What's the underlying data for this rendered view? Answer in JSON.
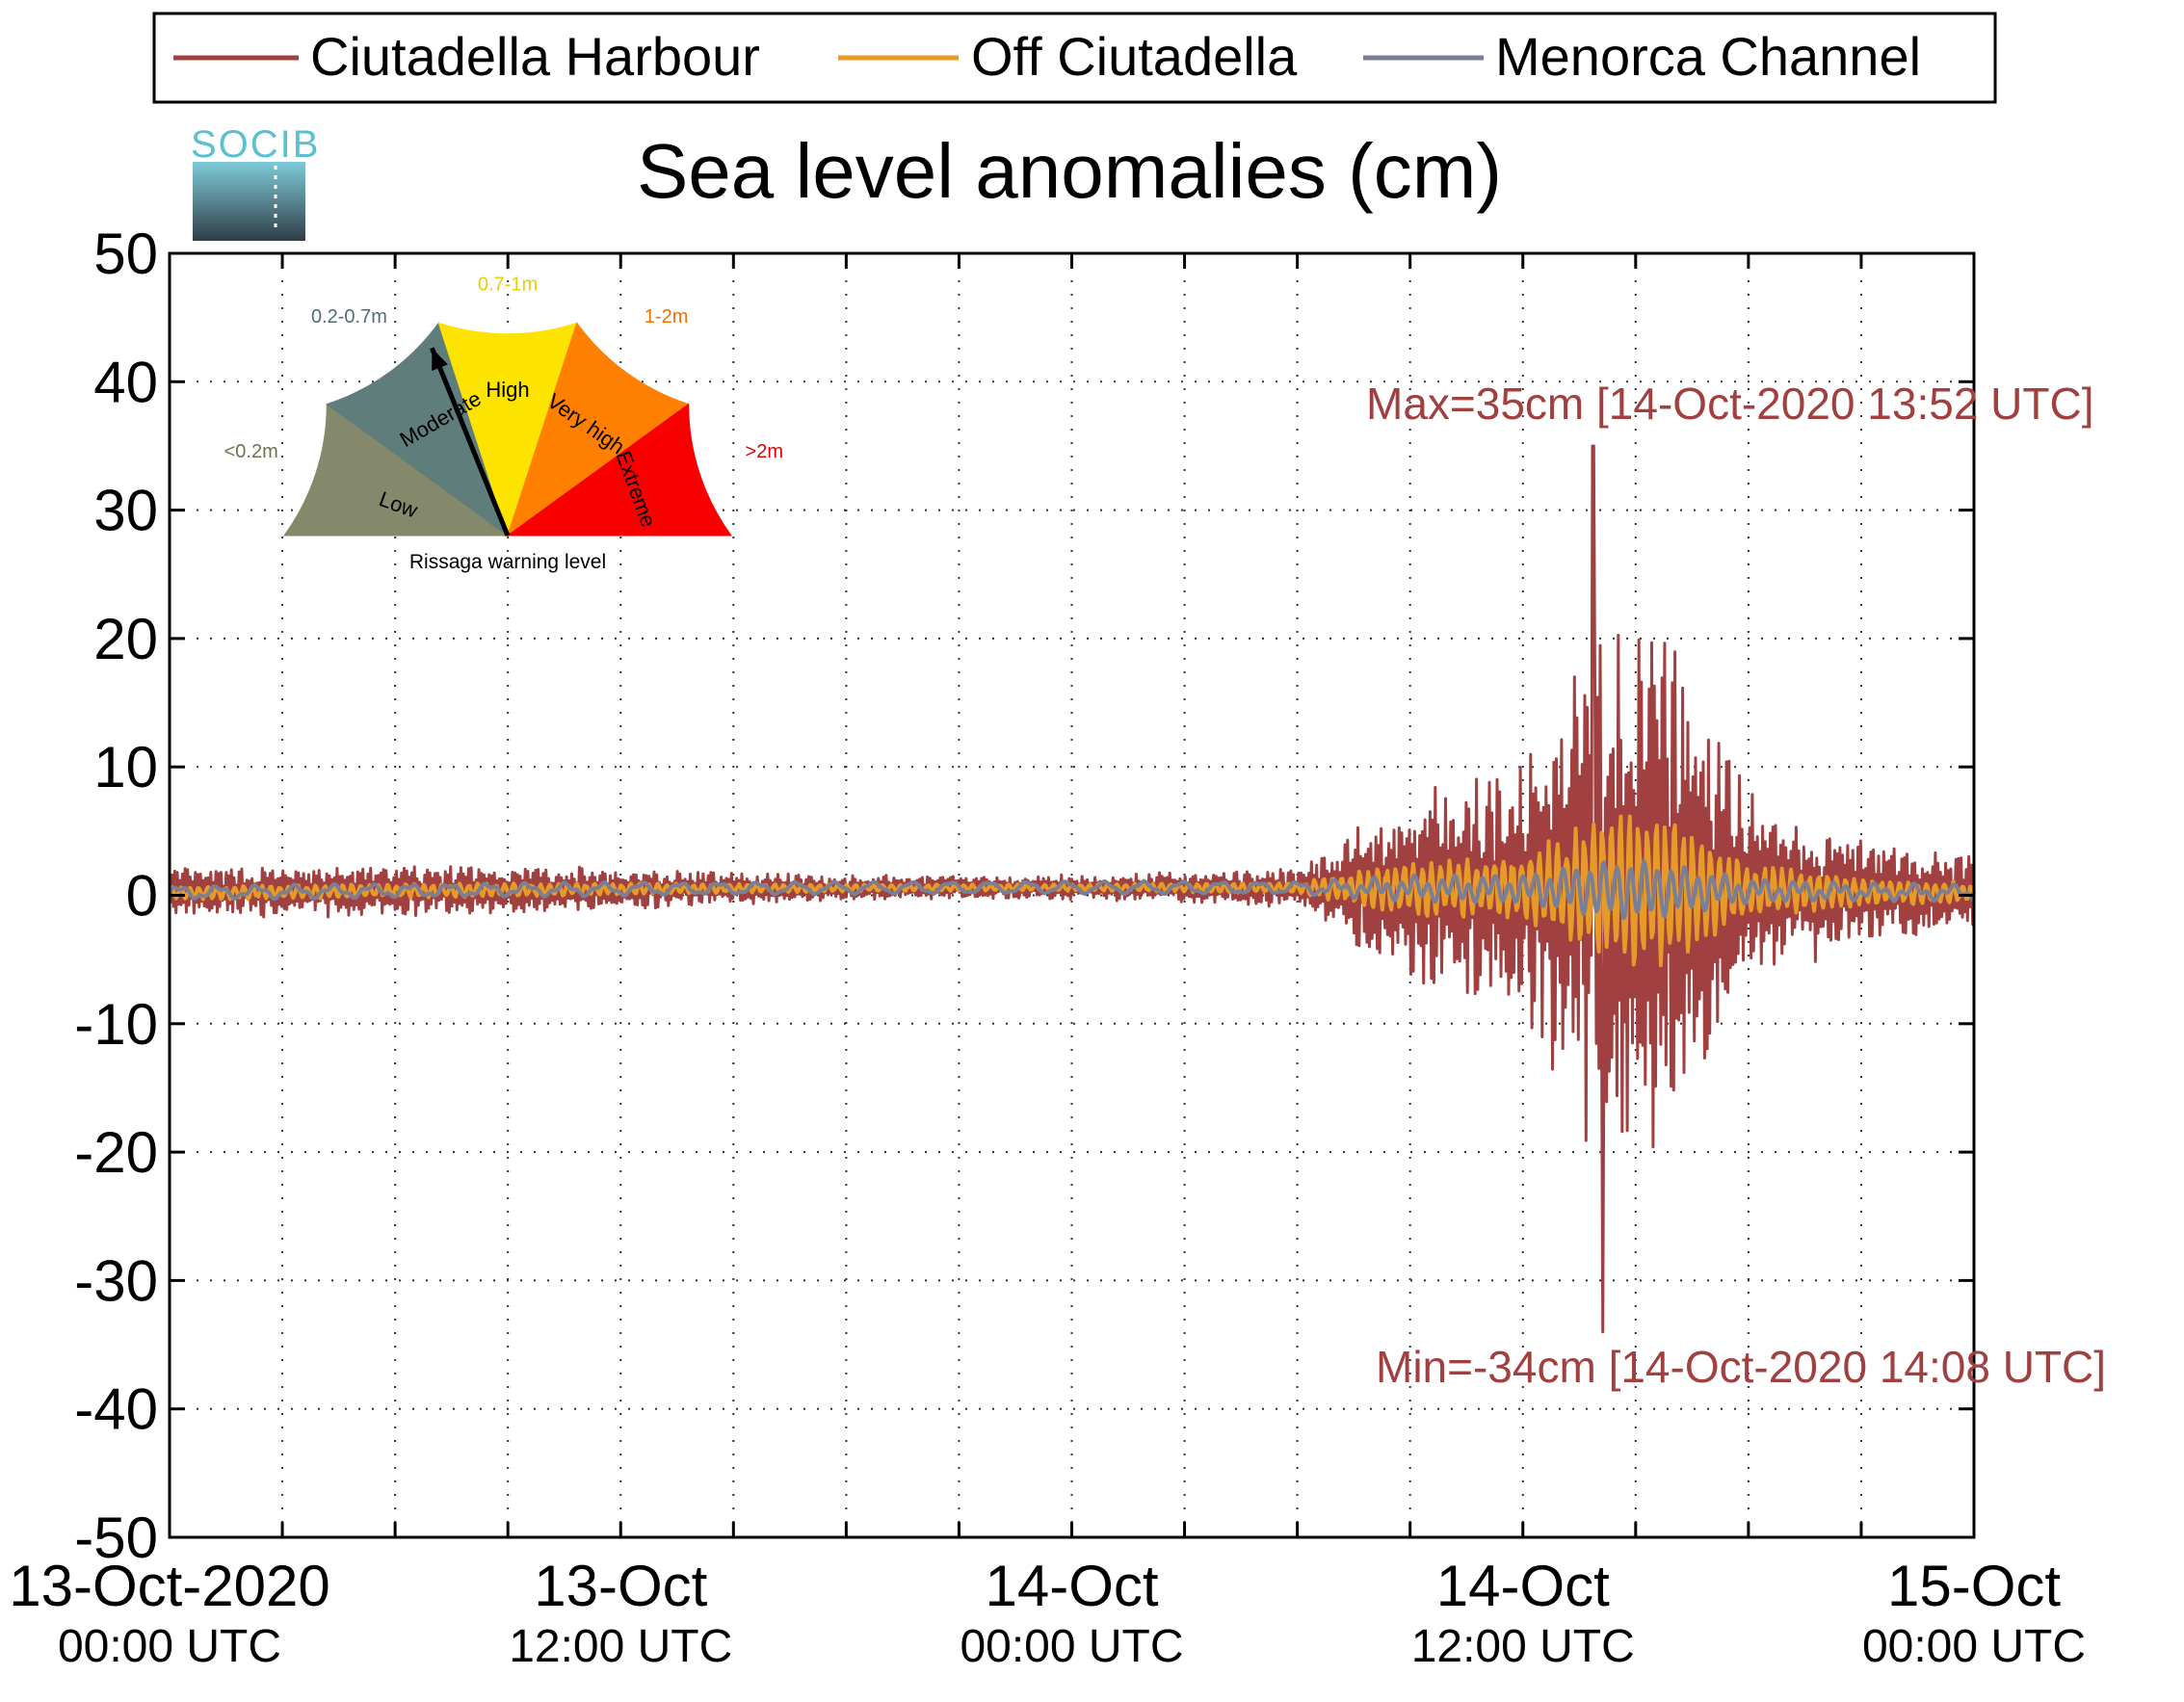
{
  "chart_data": {
    "type": "line",
    "title": "Sea level anomalies (cm)",
    "logo_text": "SOCIB",
    "ylim": [
      -50,
      50
    ],
    "y_ticks": [
      "50",
      "40",
      "30",
      "20",
      "10",
      "0",
      "-10",
      "-20",
      "-30",
      "-40",
      "-50"
    ],
    "x_range_hours": [
      0,
      48
    ],
    "x_ticks": [
      {
        "top": "13-Oct-2020",
        "bottom": "00:00 UTC"
      },
      {
        "top": "13-Oct",
        "bottom": "12:00 UTC"
      },
      {
        "top": "14-Oct",
        "bottom": "00:00 UTC"
      },
      {
        "top": "14-Oct",
        "bottom": "12:00 UTC"
      },
      {
        "top": "15-Oct",
        "bottom": "00:00 UTC"
      }
    ],
    "grid": true,
    "legend_position": "top",
    "series": [
      {
        "name": "Ciutadella Harbour",
        "color": "#a04040"
      },
      {
        "name": "Off Ciutadella",
        "color": "#e69a28"
      },
      {
        "name": "Menorca Channel",
        "color": "#7a7f96"
      }
    ],
    "annotations": {
      "max": {
        "text": "Max=35cm [14-Oct-2020 13:52 UTC]",
        "value": 35,
        "time": "14-Oct-2020 13:52 UTC"
      },
      "min": {
        "text": "Min=-34cm [14-Oct-2020 14:08 UTC]",
        "value": -34,
        "time": "14-Oct-2020 14:08 UTC"
      }
    },
    "approx_envelope_harbour_cm": [
      {
        "t": "13-Oct 00:00",
        "amp": 2
      },
      {
        "t": "13-Oct 09:00",
        "amp": 2
      },
      {
        "t": "13-Oct 18:00",
        "amp": 1
      },
      {
        "t": "14-Oct 00:00",
        "amp": 1
      },
      {
        "t": "14-Oct 06:00",
        "amp": 2
      },
      {
        "t": "14-Oct 09:00",
        "amp": 8
      },
      {
        "t": "14-Oct 12:00",
        "amp": 10
      },
      {
        "t": "14-Oct 14:00",
        "amp": 34
      },
      {
        "t": "14-Oct 16:00",
        "amp": 20
      },
      {
        "t": "14-Oct 19:00",
        "amp": 7
      },
      {
        "t": "15-Oct 00:00",
        "amp": 3
      }
    ],
    "gauge": {
      "caption": "Rissaga warning level",
      "pointer_level": "Moderate",
      "levels": [
        {
          "name": "Low",
          "range": "<0.2m",
          "color": "#83896a",
          "text_color": "#6b7350"
        },
        {
          "name": "Moderate",
          "range": "0.2-0.7m",
          "color": "#5f7d7b",
          "text_color": "#4f6d70"
        },
        {
          "name": "High",
          "range": "0.7-1m",
          "color": "#fce300",
          "text_color": "#e8d000"
        },
        {
          "name": "Very high",
          "range": "1-2m",
          "color": "#ff7f00",
          "text_color": "#f07000"
        },
        {
          "name": "Extreme",
          "range": ">2m",
          "color": "#f80000",
          "text_color": "#e00000"
        }
      ]
    }
  }
}
